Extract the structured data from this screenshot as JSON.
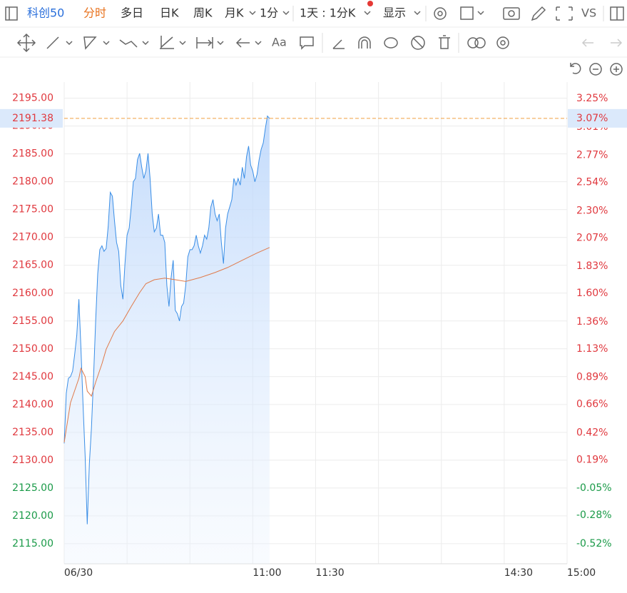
{
  "toolbar": {
    "symbol": "科创50",
    "tabs": [
      "分时",
      "多日",
      "日K",
      "周K",
      "月K",
      "1分"
    ],
    "interval": "1天 : 1分K",
    "display": "显示",
    "compare": "VS",
    "text_tool": "Aa"
  },
  "chart_data": {
    "type": "line",
    "series": [
      {
        "name": "price",
        "color": "#3a8ee6",
        "x": [
          0,
          1,
          2,
          3,
          4,
          5,
          6,
          7,
          8,
          9,
          10,
          11,
          12,
          13,
          14,
          15,
          16,
          17,
          18,
          19,
          20,
          21,
          22,
          23,
          24,
          25,
          26,
          27,
          28,
          29,
          30,
          31,
          32,
          33,
          34,
          35,
          36,
          37,
          38,
          39,
          40,
          41,
          42,
          43,
          44,
          45,
          46,
          47,
          48,
          49,
          50,
          51,
          52,
          53,
          54,
          55,
          56,
          57,
          58,
          59,
          60,
          61,
          62,
          63,
          64,
          65,
          66,
          67,
          68,
          69,
          70,
          71,
          72,
          73,
          74,
          75,
          76,
          77,
          78,
          79,
          80,
          81,
          82,
          83,
          84,
          85,
          86,
          87,
          88,
          89,
          90,
          91,
          92,
          93,
          94,
          95,
          96,
          97,
          98
        ],
        "values": [
          2133.0,
          2142.0,
          2144.7,
          2145.0,
          2146.0,
          2149.0,
          2152.4,
          2158.9,
          2150.0,
          2140.0,
          2130.6,
          2118.5,
          2129.4,
          2135.8,
          2144.7,
          2155.0,
          2163.5,
          2167.8,
          2168.5,
          2167.5,
          2168.0,
          2172.0,
          2178.1,
          2177.4,
          2173.0,
          2169.1,
          2167.5,
          2161.4,
          2158.9,
          2165.3,
          2170.4,
          2171.7,
          2175.5,
          2180.0,
          2180.6,
          2184.0,
          2185.1,
          2182.6,
          2180.6,
          2182.0,
          2185.1,
          2180.6,
          2174.2,
          2171.0,
          2171.7,
          2174.2,
          2170.4,
          2170.4,
          2169.1,
          2161.4,
          2157.6,
          2162.7,
          2165.9,
          2156.9,
          2156.3,
          2155.0,
          2157.6,
          2158.2,
          2161.4,
          2166.5,
          2167.8,
          2167.8,
          2168.5,
          2170.4,
          2168.5,
          2167.2,
          2168.5,
          2170.4,
          2169.7,
          2171.7,
          2175.5,
          2176.8,
          2174.2,
          2173.0,
          2174.2,
          2169.1,
          2165.3,
          2171.7,
          2174.2,
          2175.5,
          2176.8,
          2180.6,
          2179.4,
          2180.6,
          2179.4,
          2182.6,
          2180.6,
          2184.5,
          2186.4,
          2183.0,
          2181.9,
          2180.0,
          2181.3,
          2183.9,
          2185.8,
          2187.0,
          2189.6,
          2191.8,
          2191.38
        ]
      },
      {
        "name": "average",
        "color": "#e07a4a",
        "x": [
          0,
          3,
          7,
          8,
          10,
          11,
          13,
          15,
          18,
          20,
          24,
          28,
          32,
          36,
          39,
          43,
          48,
          53,
          58,
          65,
          72,
          78,
          85,
          92,
          98
        ],
        "values": [
          2133.2,
          2140.3,
          2144.7,
          2146.5,
          2145.0,
          2142.4,
          2141.5,
          2144.0,
          2147.3,
          2149.9,
          2153.1,
          2155.0,
          2157.6,
          2160.1,
          2161.7,
          2162.4,
          2162.7,
          2162.4,
          2162.1,
          2162.8,
          2163.7,
          2164.6,
          2165.9,
          2167.2,
          2168.2
        ]
      }
    ],
    "xlim": [
      0,
      240
    ],
    "xticks": [
      {
        "value": 0,
        "label": "06/30"
      },
      {
        "value": 90,
        "label": "11:00"
      },
      {
        "value": 120,
        "label": "11:30"
      },
      {
        "value": 210,
        "label": "14:30"
      },
      {
        "value": 240,
        "label": "15:00"
      }
    ],
    "ylim": [
      2111.4,
      2197.9
    ],
    "yticks": [
      {
        "value": 2195,
        "label": "2195.00"
      },
      {
        "value": 2190,
        "label": "2190.00"
      },
      {
        "value": 2185,
        "label": "2185.00"
      },
      {
        "value": 2180,
        "label": "2180.00"
      },
      {
        "value": 2175,
        "label": "2175.00"
      },
      {
        "value": 2170,
        "label": "2170.00"
      },
      {
        "value": 2165,
        "label": "2165.00"
      },
      {
        "value": 2160,
        "label": "2160.00"
      },
      {
        "value": 2155,
        "label": "2155.00"
      },
      {
        "value": 2150,
        "label": "2150.00"
      },
      {
        "value": 2145,
        "label": "2145.00"
      },
      {
        "value": 2140,
        "label": "2140.00"
      },
      {
        "value": 2135,
        "label": "2135.00"
      },
      {
        "value": 2130,
        "label": "2130.00"
      },
      {
        "value": 2125,
        "label": "2125.00"
      },
      {
        "value": 2120,
        "label": "2120.00"
      },
      {
        "value": 2115,
        "label": "2115.00"
      }
    ],
    "y2lim": [
      -0.69,
      3.39
    ],
    "y2ticks": [
      {
        "value": 3.25,
        "label": "3.25%"
      },
      {
        "value": 3.01,
        "label": "3.01%"
      },
      {
        "value": 2.77,
        "label": "2.77%"
      },
      {
        "value": 2.54,
        "label": "2.54%"
      },
      {
        "value": 2.3,
        "label": "2.30%"
      },
      {
        "value": 2.07,
        "label": "2.07%"
      },
      {
        "value": 1.83,
        "label": "1.83%"
      },
      {
        "value": 1.6,
        "label": "1.60%"
      },
      {
        "value": 1.36,
        "label": "1.36%"
      },
      {
        "value": 1.13,
        "label": "1.13%"
      },
      {
        "value": 0.89,
        "label": "0.89%"
      },
      {
        "value": 0.66,
        "label": "0.66%"
      },
      {
        "value": 0.42,
        "label": "0.42%"
      },
      {
        "value": 0.19,
        "label": "0.19%"
      },
      {
        "value": -0.05,
        "label": "-0.05%"
      },
      {
        "value": -0.28,
        "label": "-0.28%"
      },
      {
        "value": -0.52,
        "label": "-0.52%"
      }
    ],
    "last_price": {
      "value": 2191.38,
      "label": "2191.38"
    },
    "last_change": {
      "value": 3.07,
      "label": "3.07%"
    },
    "up_color": "#e0383e",
    "down_color": "#1a9a48",
    "grid": true
  }
}
